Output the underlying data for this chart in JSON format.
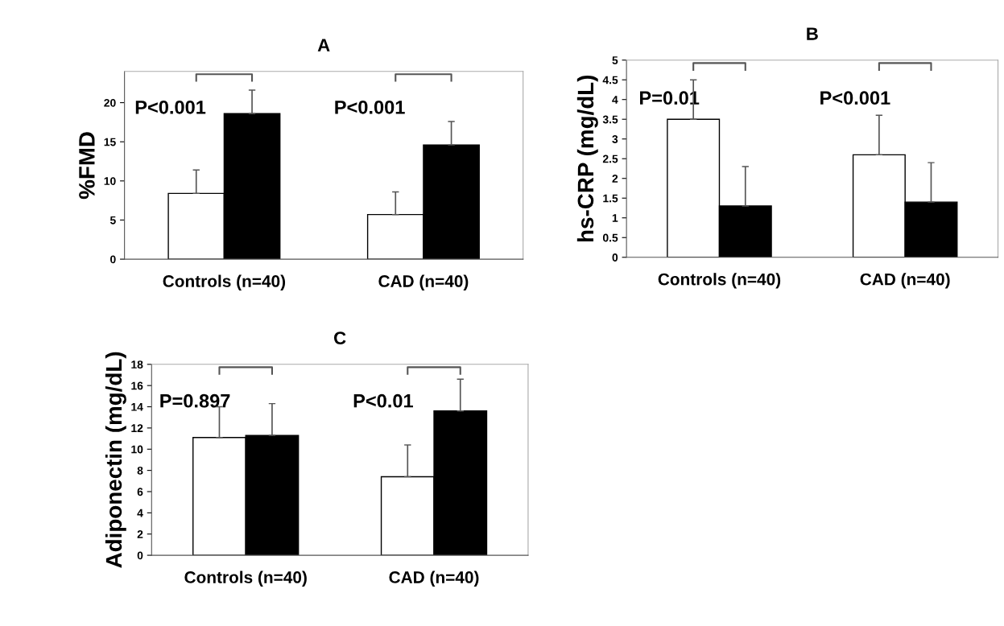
{
  "chart_data": [
    {
      "type": "bar",
      "title": "A",
      "ylabel": "%FMD",
      "categories": [
        "Controls (n=40)",
        "CAD (n=40)"
      ],
      "series": [
        {
          "color": "#ffffff",
          "values": [
            8.4,
            5.7
          ],
          "errors": [
            [
              8.4,
              11.4
            ],
            [
              5.7,
              8.6
            ]
          ]
        },
        {
          "color": "#000000",
          "values": [
            18.6,
            14.6
          ],
          "errors": [
            [
              18.6,
              21.6
            ],
            [
              14.6,
              17.6
            ]
          ]
        }
      ],
      "ylim": [
        0,
        24
      ],
      "yticks": [
        0,
        5,
        10,
        15,
        20
      ],
      "grid": false,
      "legend": false,
      "annotations": [
        "P<0.001",
        "P<0.001"
      ]
    },
    {
      "type": "bar",
      "title": "B",
      "ylabel": "hs-CRP (mg/dL)",
      "categories": [
        "Controls (n=40)",
        "CAD (n=40)"
      ],
      "series": [
        {
          "color": "#ffffff",
          "values": [
            3.5,
            2.6
          ],
          "errors": [
            [
              3.5,
              4.5
            ],
            [
              2.6,
              3.6
            ]
          ]
        },
        {
          "color": "#000000",
          "values": [
            1.3,
            1.4
          ],
          "errors": [
            [
              1.3,
              2.3
            ],
            [
              1.4,
              2.4
            ]
          ]
        }
      ],
      "ylim": [
        0,
        5
      ],
      "yticks": [
        0,
        0.5,
        1,
        1.5,
        2,
        2.5,
        3,
        3.5,
        4,
        4.5,
        5
      ],
      "grid": false,
      "legend": false,
      "annotations": [
        "P=0.01",
        "P<0.001"
      ]
    },
    {
      "type": "bar",
      "title": "C",
      "ylabel": "Adiponectin (mg/dL)",
      "categories": [
        "Controls (n=40)",
        "CAD (n=40)"
      ],
      "series": [
        {
          "color": "#ffffff",
          "values": [
            11.1,
            7.4
          ],
          "errors": [
            [
              11.1,
              14.0
            ],
            [
              7.4,
              10.4
            ]
          ]
        },
        {
          "color": "#000000",
          "values": [
            11.3,
            13.6
          ],
          "errors": [
            [
              11.3,
              14.3
            ],
            [
              13.6,
              16.6
            ]
          ]
        }
      ],
      "ylim": [
        0,
        18
      ],
      "yticks": [
        0,
        2,
        4,
        6,
        8,
        10,
        12,
        14,
        16,
        18
      ],
      "grid": false,
      "legend": false,
      "annotations": [
        "P=0.897",
        "P<0.01"
      ]
    }
  ]
}
